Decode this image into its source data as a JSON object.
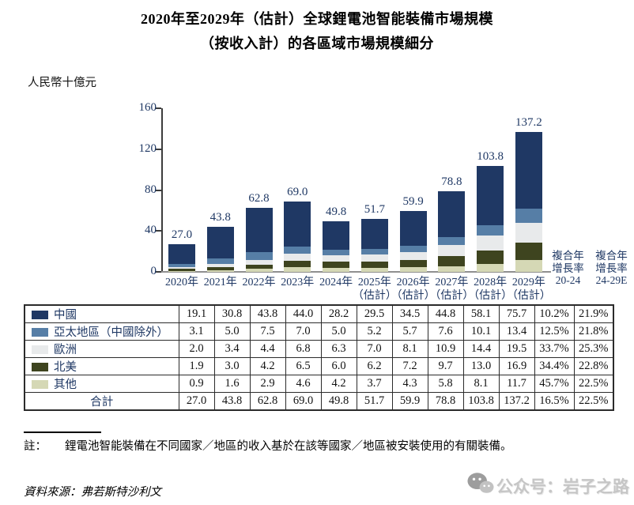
{
  "title": {
    "line1": "2020年至2029年（估計）全球鋰電池智能裝備市場規模",
    "line2": "（按收入計）的各區域市場規模細分"
  },
  "unit_label": "人民幣十億元",
  "chart_data": {
    "type": "bar",
    "stacked": true,
    "title": "2020年至2029年（估計）全球鋰電池智能裝備市場規模（按收入計）的各區域市場規模細分",
    "ylabel": "人民幣十億元",
    "ylim": [
      0,
      160
    ],
    "yticks": [
      0,
      40,
      80,
      120,
      160
    ],
    "grid": false,
    "categories": [
      "2020年",
      "2021年",
      "2022年",
      "2023年",
      "2024年",
      "2025年",
      "2026年",
      "2027年",
      "2028年",
      "2029年"
    ],
    "category_subs": [
      "",
      "",
      "",
      "",
      "",
      "（估計）",
      "（估計）",
      "（估計）",
      "（估計）",
      "（估計）"
    ],
    "series": [
      {
        "name": "中國",
        "color": "#1F3864",
        "values": [
          19.1,
          30.8,
          43.8,
          44.0,
          28.2,
          29.5,
          34.5,
          44.8,
          58.1,
          75.7
        ],
        "cagr_20_24": "10.2%",
        "cagr_24_29e": "21.9%"
      },
      {
        "name": "亞太地區（中國除外）",
        "color": "#567EA6",
        "values": [
          3.1,
          5.0,
          7.5,
          7.0,
          5.0,
          5.2,
          5.7,
          7.6,
          10.1,
          13.4
        ],
        "cagr_20_24": "12.5%",
        "cagr_24_29e": "21.8%"
      },
      {
        "name": "歐洲",
        "color": "#E8EAEB",
        "values": [
          2.0,
          3.4,
          4.4,
          6.8,
          6.3,
          7.0,
          8.1,
          10.9,
          14.4,
          19.5
        ],
        "cagr_20_24": "33.7%",
        "cagr_24_29e": "25.3%"
      },
      {
        "name": "北美",
        "color": "#3E441F",
        "values": [
          1.9,
          3.0,
          4.2,
          6.5,
          6.0,
          6.2,
          7.2,
          9.7,
          13.0,
          16.9
        ],
        "cagr_20_24": "34.4%",
        "cagr_24_29e": "22.8%"
      },
      {
        "name": "其他",
        "color": "#D5D8B5",
        "values": [
          0.9,
          1.6,
          2.9,
          4.6,
          4.2,
          3.7,
          4.3,
          5.8,
          8.1,
          11.7
        ],
        "cagr_20_24": "45.7%",
        "cagr_24_29e": "22.5%"
      }
    ],
    "totals": [
      27.0,
      43.8,
      62.8,
      69.0,
      49.8,
      51.7,
      59.9,
      78.8,
      103.8,
      137.2
    ],
    "totals_row": {
      "label": "合計",
      "cagr_20_24": "16.5%",
      "cagr_24_29e": "22.5%"
    },
    "cagr_headers": [
      {
        "lines": [
          "複合年",
          "增長率",
          "20-24"
        ]
      },
      {
        "lines": [
          "複合年",
          "增長率",
          "24-29E"
        ]
      }
    ],
    "legend_position": "table-left"
  },
  "note": {
    "prefix": "註：",
    "text": "鋰電池智能裝備在不同國家／地區的收入基於在該等國家／地區被安裝使用的有關裝備。"
  },
  "source": "資料來源：弗若斯特沙利文",
  "watermark": {
    "icon": "wechat-icon",
    "text": "公众号：岩子之路"
  }
}
